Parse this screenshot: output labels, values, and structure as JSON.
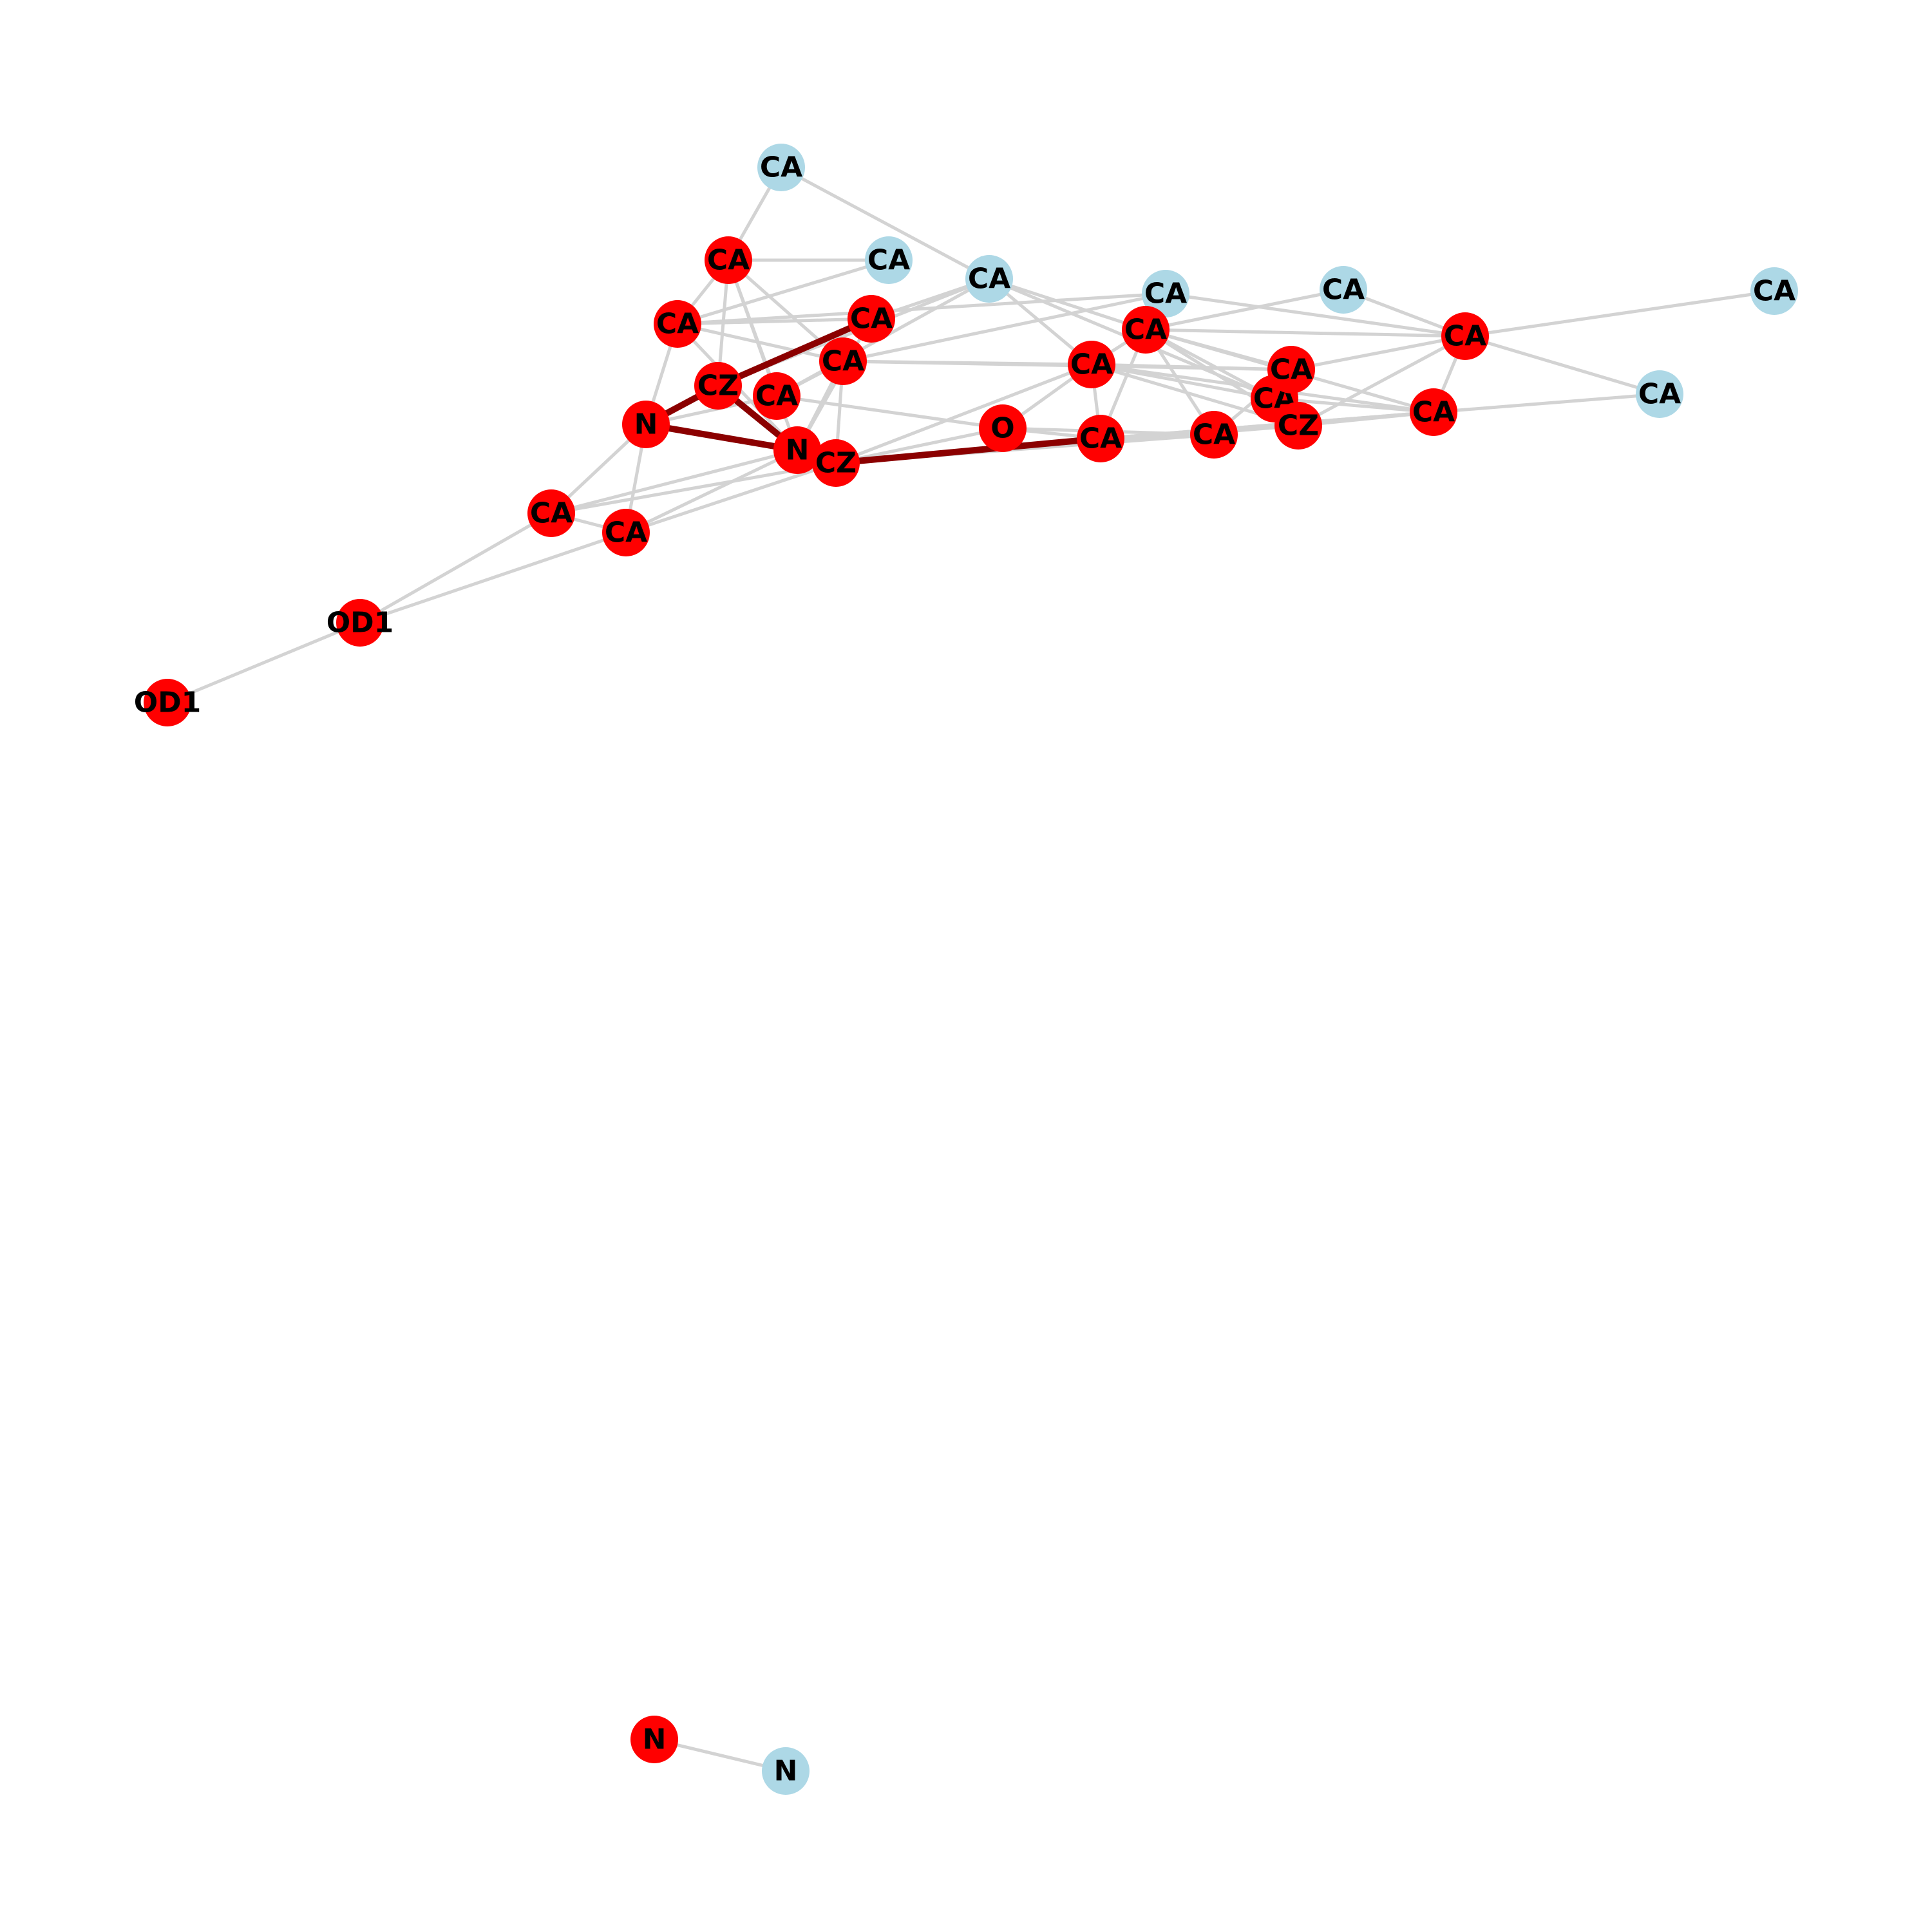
{
  "graph": {
    "colors": {
      "highlight_node": "#ff0000",
      "normal_node": "#add8e6",
      "edge": "#d3d3d3",
      "highlight_edge": "#8b0000",
      "label": "#000000"
    },
    "nodes": [
      {
        "id": "ca_top",
        "label": "CA",
        "highlighted": false
      },
      {
        "id": "ca_r1",
        "label": "CA",
        "highlighted": true
      },
      {
        "id": "ca_b1",
        "label": "CA",
        "highlighted": false
      },
      {
        "id": "ca_b2",
        "label": "CA",
        "highlighted": false
      },
      {
        "id": "ca_r2",
        "label": "CA",
        "highlighted": true
      },
      {
        "id": "ca_r3",
        "label": "CA",
        "highlighted": true
      },
      {
        "id": "ca_b3",
        "label": "CA",
        "highlighted": false
      },
      {
        "id": "ca_b4",
        "label": "CA",
        "highlighted": false
      },
      {
        "id": "ca_b5",
        "label": "CA",
        "highlighted": false
      },
      {
        "id": "ca_r4",
        "label": "CA",
        "highlighted": true
      },
      {
        "id": "ca_r5",
        "label": "CA",
        "highlighted": true
      },
      {
        "id": "cz_1",
        "label": "CZ",
        "highlighted": true
      },
      {
        "id": "ca_r6",
        "label": "CA",
        "highlighted": true
      },
      {
        "id": "n_1",
        "label": "N",
        "highlighted": true
      },
      {
        "id": "n_2",
        "label": "N",
        "highlighted": true
      },
      {
        "id": "cz_2",
        "label": "CZ",
        "highlighted": true
      },
      {
        "id": "o_1",
        "label": "O",
        "highlighted": true
      },
      {
        "id": "ca_r7",
        "label": "CA",
        "highlighted": true
      },
      {
        "id": "ca_r8",
        "label": "CA",
        "highlighted": true
      },
      {
        "id": "ca_r9",
        "label": "CA",
        "highlighted": true
      },
      {
        "id": "ca_r10",
        "label": "CA",
        "highlighted": true
      },
      {
        "id": "ca_r11",
        "label": "CA",
        "highlighted": true
      },
      {
        "id": "cz_3",
        "label": "CZ",
        "highlighted": true
      },
      {
        "id": "ca_r12",
        "label": "CA",
        "highlighted": true
      },
      {
        "id": "ca_r13",
        "label": "CA",
        "highlighted": true
      },
      {
        "id": "ca_b6",
        "label": "CA",
        "highlighted": false
      },
      {
        "id": "ca_r14",
        "label": "CA",
        "highlighted": true
      },
      {
        "id": "ca_r15",
        "label": "CA",
        "highlighted": true
      },
      {
        "id": "od1_1",
        "label": "OD1",
        "highlighted": true
      },
      {
        "id": "od1_2",
        "label": "OD1",
        "highlighted": true
      },
      {
        "id": "n_3",
        "label": "N",
        "highlighted": true
      },
      {
        "id": "n_4",
        "label": "N",
        "highlighted": false
      }
    ],
    "edges": [
      {
        "source": "ca_top",
        "target": "ca_r1",
        "highlighted": false
      },
      {
        "source": "ca_top",
        "target": "ca_b2",
        "highlighted": false
      },
      {
        "source": "ca_r1",
        "target": "ca_b1",
        "highlighted": false
      },
      {
        "source": "ca_r1",
        "target": "ca_r2",
        "highlighted": false
      },
      {
        "source": "ca_r1",
        "target": "ca_r5",
        "highlighted": false
      },
      {
        "source": "ca_r1",
        "target": "cz_1",
        "highlighted": false
      },
      {
        "source": "ca_r1",
        "target": "ca_r6",
        "highlighted": false
      },
      {
        "source": "ca_r1",
        "target": "n_2",
        "highlighted": false
      },
      {
        "source": "ca_r2",
        "target": "ca_b1",
        "highlighted": false
      },
      {
        "source": "ca_r2",
        "target": "ca_r3",
        "highlighted": false
      },
      {
        "source": "ca_r2",
        "target": "ca_b3",
        "highlighted": false
      },
      {
        "source": "ca_r2",
        "target": "ca_r5",
        "highlighted": false
      },
      {
        "source": "ca_r2",
        "target": "n_1",
        "highlighted": false
      },
      {
        "source": "ca_r2",
        "target": "n_2",
        "highlighted": false
      },
      {
        "source": "ca_r3",
        "target": "cz_1",
        "highlighted": true
      },
      {
        "source": "ca_r3",
        "target": "ca_b2",
        "highlighted": false
      },
      {
        "source": "ca_r3",
        "target": "n_2",
        "highlighted": false
      },
      {
        "source": "ca_b2",
        "target": "ca_r4",
        "highlighted": false
      },
      {
        "source": "ca_b2",
        "target": "ca_r7",
        "highlighted": false
      },
      {
        "source": "ca_b2",
        "target": "ca_r10",
        "highlighted": false
      },
      {
        "source": "ca_b2",
        "target": "ca_r6",
        "highlighted": false
      },
      {
        "source": "ca_b2",
        "target": "cz_1",
        "highlighted": false
      },
      {
        "source": "ca_b3",
        "target": "ca_r12",
        "highlighted": false
      },
      {
        "source": "ca_b3",
        "target": "ca_r5",
        "highlighted": false
      },
      {
        "source": "ca_b4",
        "target": "ca_r4",
        "highlighted": false
      },
      {
        "source": "ca_r12",
        "target": "ca_b4",
        "highlighted": false
      },
      {
        "source": "ca_r12",
        "target": "ca_b5",
        "highlighted": false
      },
      {
        "source": "ca_r12",
        "target": "ca_b6",
        "highlighted": false
      },
      {
        "source": "ca_r12",
        "target": "ca_r4",
        "highlighted": false
      },
      {
        "source": "ca_r12",
        "target": "ca_r13",
        "highlighted": false
      },
      {
        "source": "ca_r12",
        "target": "cz_3",
        "highlighted": false
      },
      {
        "source": "ca_r12",
        "target": "ca_r11",
        "highlighted": false
      },
      {
        "source": "ca_r13",
        "target": "ca_b6",
        "highlighted": false
      },
      {
        "source": "ca_r13",
        "target": "ca_r8",
        "highlighted": false
      },
      {
        "source": "ca_r13",
        "target": "ca_r4",
        "highlighted": false
      },
      {
        "source": "ca_r13",
        "target": "cz_2",
        "highlighted": false
      },
      {
        "source": "ca_r4",
        "target": "ca_r10",
        "highlighted": false
      },
      {
        "source": "ca_r4",
        "target": "ca_r11",
        "highlighted": false
      },
      {
        "source": "ca_r4",
        "target": "cz_3",
        "highlighted": false
      },
      {
        "source": "ca_r4",
        "target": "ca_r9",
        "highlighted": false
      },
      {
        "source": "ca_r4",
        "target": "ca_r7",
        "highlighted": false
      },
      {
        "source": "ca_r4",
        "target": "ca_r8",
        "highlighted": false
      },
      {
        "source": "ca_r7",
        "target": "ca_r10",
        "highlighted": false
      },
      {
        "source": "ca_r7",
        "target": "ca_r11",
        "highlighted": false
      },
      {
        "source": "ca_r7",
        "target": "cz_3",
        "highlighted": false
      },
      {
        "source": "ca_r7",
        "target": "ca_r13",
        "highlighted": false
      },
      {
        "source": "ca_r7",
        "target": "ca_r8",
        "highlighted": false
      },
      {
        "source": "ca_r7",
        "target": "o_1",
        "highlighted": false
      },
      {
        "source": "ca_r7",
        "target": "cz_2",
        "highlighted": false
      },
      {
        "source": "ca_r7",
        "target": "ca_r5",
        "highlighted": false
      },
      {
        "source": "ca_r5",
        "target": "ca_r11",
        "highlighted": false
      },
      {
        "source": "ca_r5",
        "target": "cz_2",
        "highlighted": false
      },
      {
        "source": "ca_r5",
        "target": "n_2",
        "highlighted": false
      },
      {
        "source": "ca_r5",
        "target": "ca_r6",
        "highlighted": false
      },
      {
        "source": "ca_r6",
        "target": "o_1",
        "highlighted": false
      },
      {
        "source": "ca_r6",
        "target": "n_1",
        "highlighted": false
      },
      {
        "source": "cz_1",
        "target": "n_1",
        "highlighted": true
      },
      {
        "source": "cz_1",
        "target": "n_2",
        "highlighted": true
      },
      {
        "source": "n_1",
        "target": "n_2",
        "highlighted": true
      },
      {
        "source": "n_1",
        "target": "ca_r14",
        "highlighted": false
      },
      {
        "source": "n_1",
        "target": "ca_r15",
        "highlighted": false
      },
      {
        "source": "cz_2",
        "target": "ca_r8",
        "highlighted": true
      },
      {
        "source": "cz_2",
        "target": "o_1",
        "highlighted": false
      },
      {
        "source": "cz_2",
        "target": "ca_r9",
        "highlighted": false
      },
      {
        "source": "cz_2",
        "target": "cz_3",
        "highlighted": false
      },
      {
        "source": "cz_2",
        "target": "ca_r14",
        "highlighted": false
      },
      {
        "source": "cz_2",
        "target": "ca_r15",
        "highlighted": false
      },
      {
        "source": "n_2",
        "target": "ca_r14",
        "highlighted": false
      },
      {
        "source": "n_2",
        "target": "ca_r15",
        "highlighted": false
      },
      {
        "source": "o_1",
        "target": "ca_r8",
        "highlighted": false
      },
      {
        "source": "o_1",
        "target": "ca_r9",
        "highlighted": false
      },
      {
        "source": "ca_r8",
        "target": "ca_r9",
        "highlighted": false
      },
      {
        "source": "ca_r8",
        "target": "cz_3",
        "highlighted": false
      },
      {
        "source": "ca_r8",
        "target": "ca_r13",
        "highlighted": false
      },
      {
        "source": "ca_r9",
        "target": "ca_r11",
        "highlighted": false
      },
      {
        "source": "ca_r10",
        "target": "cz_3",
        "highlighted": false
      },
      {
        "source": "ca_r10",
        "target": "ca_r13",
        "highlighted": false
      },
      {
        "source": "cz_3",
        "target": "ca_r13",
        "highlighted": false
      },
      {
        "source": "ca_r14",
        "target": "ca_r15",
        "highlighted": false
      },
      {
        "source": "ca_r14",
        "target": "od1_1",
        "highlighted": false
      },
      {
        "source": "ca_r15",
        "target": "od1_1",
        "highlighted": false
      },
      {
        "source": "od1_1",
        "target": "od1_2",
        "highlighted": false
      },
      {
        "source": "n_3",
        "target": "n_4",
        "highlighted": false
      }
    ]
  }
}
